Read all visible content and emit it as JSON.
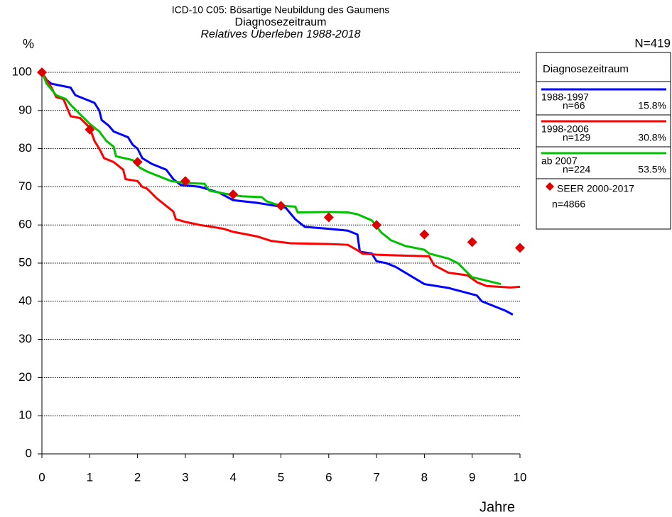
{
  "chart_data": {
    "type": "line",
    "title": "ICD-10 C05: Bösartige Neubildung des Gaumens",
    "subtitle": "Diagnosezeitraum",
    "subtitle2": "Relatives Überleben 1988-2018",
    "y_label": "%",
    "x_label": "Jahre",
    "n_total": "N=419",
    "legend_title": "Diagnosezeitraum",
    "xlim": [
      0,
      10
    ],
    "ylim": [
      0,
      100
    ],
    "xticks": [
      0,
      1,
      2,
      3,
      4,
      5,
      6,
      7,
      8,
      9,
      10
    ],
    "yticks": [
      0,
      10,
      20,
      30,
      40,
      50,
      60,
      70,
      80,
      90,
      100
    ],
    "grid": true,
    "series": [
      {
        "name": "1988-1997",
        "n_label": "n=66",
        "share_label": "15.8%",
        "color": "#0000ff",
        "x": [
          0,
          0.1,
          0.2,
          0.6,
          0.7,
          0.9,
          1.1,
          1.2,
          1.25,
          1.4,
          1.5,
          1.8,
          1.9,
          2.0,
          2.1,
          2.3,
          2.6,
          2.75,
          2.9,
          3.3,
          3.7,
          4.0,
          4.5,
          4.9,
          5.1,
          5.3,
          5.5,
          6.0,
          6.4,
          6.6,
          6.65,
          6.9,
          7.0,
          7.2,
          7.4,
          7.6,
          8.0,
          8.5,
          8.8,
          9.1,
          9.2,
          9.5,
          9.7,
          9.85
        ],
        "values": [
          100,
          98,
          97,
          96,
          94,
          93,
          92,
          90,
          87.5,
          86,
          84.5,
          83,
          81,
          80,
          77.5,
          76,
          74.5,
          72,
          70.5,
          70,
          68.5,
          66.5,
          65.8,
          65,
          64.5,
          61.5,
          59.5,
          59,
          58.5,
          57.5,
          53,
          52.5,
          50.5,
          50,
          49,
          47.5,
          44.5,
          43.5,
          42.5,
          41.5,
          40,
          38.5,
          37.5,
          36.5
        ]
      },
      {
        "name": "1998-2006",
        "n_label": "n=129",
        "share_label": "30.8%",
        "color": "#ff0000",
        "x": [
          0,
          0.1,
          0.2,
          0.3,
          0.45,
          0.55,
          0.6,
          0.8,
          1.0,
          1.1,
          1.2,
          1.3,
          1.5,
          1.7,
          1.75,
          2.0,
          2.1,
          2.2,
          2.4,
          2.6,
          2.75,
          2.8,
          3.0,
          3.3,
          3.8,
          4.0,
          4.5,
          4.8,
          5.2,
          6.0,
          6.4,
          6.65,
          6.7,
          7.0,
          7.5,
          8.1,
          8.2,
          8.5,
          8.9,
          9.1,
          9.3,
          9.8,
          10.0
        ],
        "values": [
          100,
          98,
          96,
          93.5,
          93,
          90,
          88.5,
          88,
          85.5,
          82,
          80,
          77.5,
          76.5,
          74.5,
          72,
          71.5,
          70,
          69.5,
          67,
          65,
          63.5,
          61.5,
          60.8,
          60,
          59,
          58.2,
          57,
          55.8,
          55.2,
          55,
          54.8,
          53,
          52.5,
          52.2,
          52,
          51.8,
          49.5,
          47.5,
          46.8,
          45,
          44,
          43.6,
          43.8
        ]
      },
      {
        "name": "ab 2007",
        "n_label": "n=224",
        "share_label": "53.5%",
        "color": "#00c000",
        "x": [
          0,
          0.1,
          0.3,
          0.5,
          0.6,
          0.8,
          1.0,
          1.2,
          1.35,
          1.5,
          1.55,
          1.9,
          2.05,
          2.2,
          2.5,
          2.7,
          3.0,
          3.4,
          3.5,
          3.7,
          4.0,
          4.2,
          4.6,
          4.7,
          5.0,
          5.3,
          5.35,
          6.0,
          6.4,
          6.6,
          6.9,
          7.1,
          7.3,
          7.6,
          8.0,
          8.1,
          8.5,
          8.7,
          8.9,
          9.0,
          9.6
        ],
        "values": [
          100,
          97,
          94,
          93,
          91.5,
          89,
          86.5,
          84.5,
          82,
          80.5,
          78,
          77,
          75,
          74,
          72.5,
          71.5,
          71,
          70.8,
          69,
          68.5,
          67.8,
          67.5,
          67.3,
          66.2,
          65,
          64.8,
          63.3,
          63.4,
          63.3,
          62.8,
          61.2,
          58,
          56,
          54.5,
          53.5,
          52.5,
          51.2,
          50,
          47.5,
          46.3,
          44.5
        ]
      },
      {
        "name": "SEER 2000-2017",
        "n_label": "n=4866",
        "color": "#e00000",
        "marker": "diamond",
        "x": [
          0,
          1,
          2,
          3,
          4,
          5,
          6,
          7,
          8,
          9,
          10
        ],
        "values": [
          100,
          85,
          76.5,
          71.5,
          68,
          65,
          62,
          60,
          57.5,
          55.5,
          54
        ]
      }
    ]
  }
}
